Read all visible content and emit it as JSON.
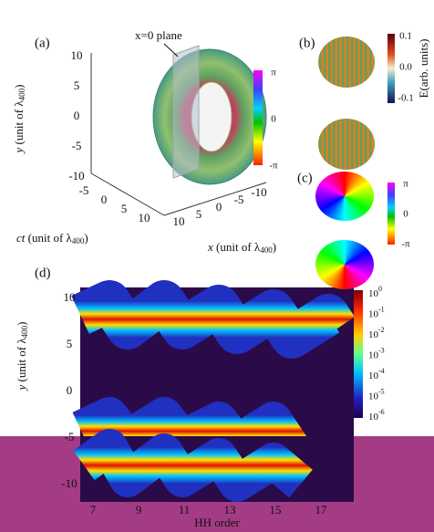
{
  "panel_a": {
    "label": "(a)",
    "annotation": "x=0 plane",
    "y_axis": {
      "var": "y",
      "pre": " (unit of λ",
      "sub": "400",
      "post": ")",
      "ticks": [
        "10",
        "5",
        "0",
        "-5",
        "-10"
      ]
    },
    "ct_axis": {
      "var": "ct",
      "pre": " (unit of λ",
      "sub": "400",
      "post": ")",
      "ticks": [
        "-5",
        "0",
        "5",
        "10"
      ]
    },
    "x_axis": {
      "var": "x",
      "pre": " (unit of λ",
      "sub": "400",
      "post": ")",
      "ticks": [
        "-10",
        "-5",
        "0",
        "5",
        "10"
      ]
    },
    "colorbar": [
      "π",
      "0",
      "-π"
    ]
  },
  "panel_b": {
    "label": "(b)",
    "colorbar": [
      "0.1",
      "0.0",
      "-0.1"
    ],
    "colorbar_label": "E(arb. units)"
  },
  "panel_c": {
    "label": "(c)",
    "colorbar": [
      "π",
      "0",
      "-π"
    ]
  },
  "panel_d": {
    "label": "(d)",
    "y_axis": {
      "var": "y",
      "pre": " (unit of λ",
      "sub": "400",
      "post": ")",
      "ticks": [
        "10",
        "5",
        "0",
        "-5",
        "-10"
      ]
    },
    "x_axis": {
      "label": "HH order",
      "ticks": [
        "7",
        "9",
        "11",
        "13",
        "15",
        "17"
      ]
    },
    "colorbar": [
      {
        "base": "10",
        "exp": "0"
      },
      {
        "base": "10",
        "exp": "-1"
      },
      {
        "base": "10",
        "exp": "-2"
      },
      {
        "base": "10",
        "exp": "-3"
      },
      {
        "base": "10",
        "exp": "-4"
      },
      {
        "base": "10",
        "exp": "-5"
      },
      {
        "base": "10",
        "exp": "-6"
      }
    ]
  }
}
